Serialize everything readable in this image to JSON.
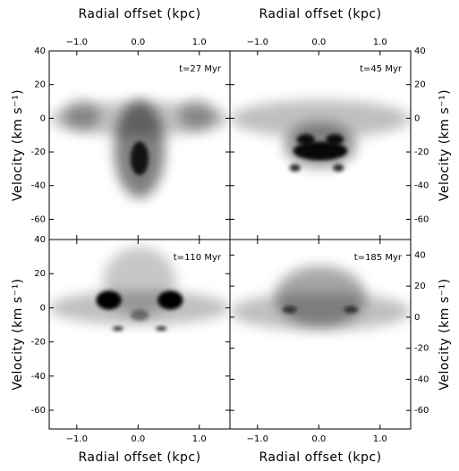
{
  "chart_data": [
    {
      "type": "image",
      "annotation": "t=27 Myr",
      "xlabel": "Radial offset (kpc)",
      "ylabel": "Velocity (km s⁻¹)",
      "xlim": [
        -1.45,
        1.5
      ],
      "ylim": [
        -72,
        40
      ],
      "xticks": [
        {
          "value": -1,
          "label": "−1.0"
        },
        {
          "value": 0,
          "label": "0.0"
        },
        {
          "value": 1,
          "label": "1.0"
        }
      ],
      "yticks": [
        40,
        20,
        0,
        -20,
        -40,
        -60
      ]
    },
    {
      "type": "image",
      "annotation": "t=45 Myr",
      "xlabel": "Radial offset (kpc)",
      "ylabel": "Velocity (km s⁻¹)",
      "xlim": [
        -1.45,
        1.5
      ],
      "ylim": [
        -72,
        40
      ],
      "xticks": [
        {
          "value": -1,
          "label": "−1.0"
        },
        {
          "value": 0,
          "label": "0.0"
        },
        {
          "value": 1,
          "label": "1.0"
        }
      ],
      "yticks": [
        40,
        20,
        0,
        -20,
        -40,
        -60
      ]
    },
    {
      "type": "image",
      "annotation": "t=110 Myr",
      "xlabel": "Radial offset (kpc)",
      "ylabel": "Velocity (km s⁻¹)",
      "xlim": [
        -1.45,
        1.5
      ],
      "ylim": [
        -71,
        40
      ],
      "xticks": [
        {
          "value": -1,
          "label": "−1.0"
        },
        {
          "value": 0,
          "label": "0.0"
        },
        {
          "value": 1,
          "label": "1.0"
        }
      ],
      "yticks": [
        40,
        20,
        0,
        -20,
        -40,
        -60
      ]
    },
    {
      "type": "image",
      "annotation": "t=185 Myr",
      "xlabel": "Radial offset (kpc)",
      "ylabel": "Velocity (km s⁻¹)",
      "xlim": [
        -1.45,
        1.5
      ],
      "ylim": [
        -72,
        50
      ],
      "xticks": [
        {
          "value": -1,
          "label": "−1.0"
        },
        {
          "value": 0,
          "label": "0.0"
        },
        {
          "value": 1,
          "label": "1.0"
        }
      ],
      "yticks": [
        40,
        20,
        0,
        -20,
        -40,
        -60
      ]
    }
  ]
}
